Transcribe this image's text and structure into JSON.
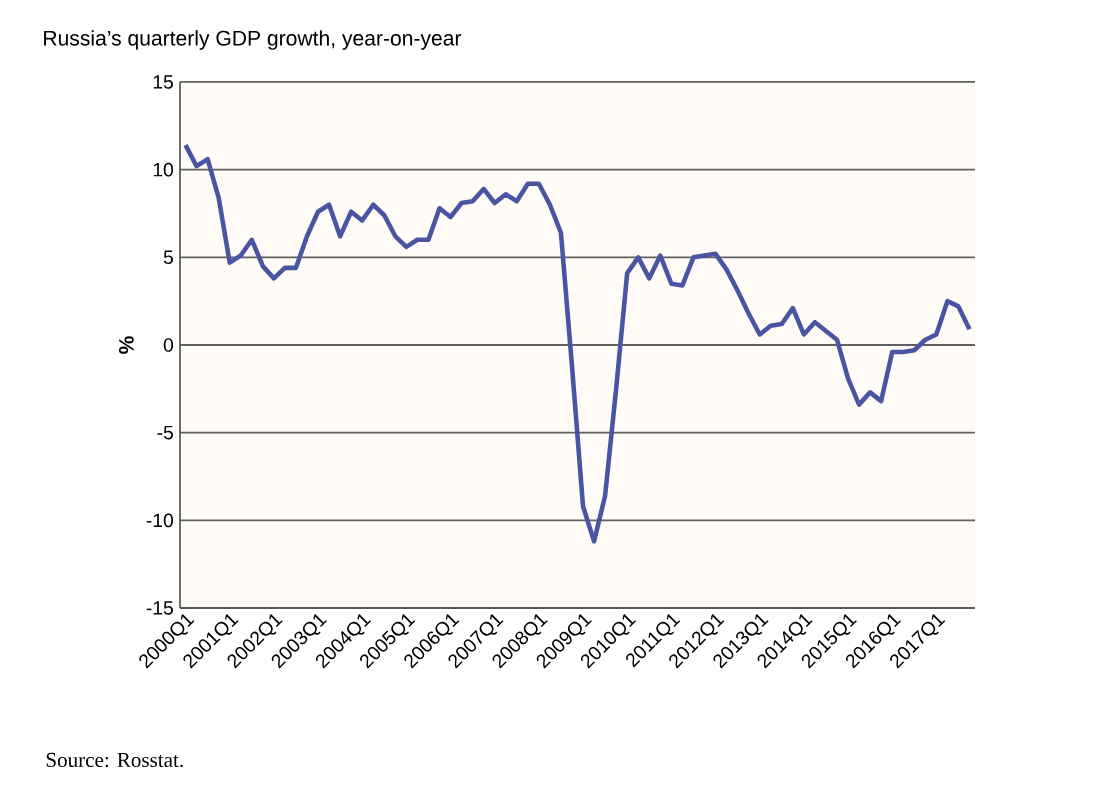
{
  "chart_data": {
    "type": "line",
    "title": "Russia’s quarterly GDP growth, year-on-year",
    "ylabel": "%",
    "annotations": [
      "Source: Rosstat."
    ],
    "categories": [
      "2000Q1",
      null,
      null,
      null,
      "2001Q1",
      null,
      null,
      null,
      "2002Q1",
      null,
      null,
      null,
      "2003Q1",
      null,
      null,
      null,
      "2004Q1",
      null,
      null,
      null,
      "2005Q1",
      null,
      null,
      null,
      "2006Q1",
      null,
      null,
      null,
      "2007Q1",
      null,
      null,
      null,
      "2008Q1",
      null,
      null,
      null,
      "2009Q1",
      null,
      null,
      null,
      "2010Q1",
      null,
      null,
      null,
      "2011Q1",
      null,
      null,
      null,
      "2012Q1",
      null,
      null,
      null,
      "2013Q1",
      null,
      null,
      null,
      "2014Q1",
      null,
      null,
      null,
      "2015Q1",
      null,
      null,
      null,
      "2016Q1",
      null,
      null,
      null,
      "2017Q1",
      null,
      null,
      null
    ],
    "series": [
      {
        "color": "#4a55a2",
        "values": [
          11.4,
          10.2,
          10.6,
          8.4,
          4.7,
          5.1,
          6.0,
          4.5,
          3.8,
          4.4,
          4.4,
          6.2,
          7.6,
          8.0,
          6.2,
          7.6,
          7.1,
          8.0,
          7.4,
          6.2,
          5.6,
          6.0,
          6.0,
          7.8,
          7.3,
          8.1,
          8.2,
          8.9,
          8.1,
          8.6,
          8.2,
          9.2,
          9.2,
          8.0,
          6.4,
          -1.2,
          -9.2,
          -11.2,
          -8.6,
          -2.5,
          4.1,
          5.0,
          3.8,
          5.1,
          3.5,
          3.4,
          5.0,
          5.1,
          5.2,
          4.3,
          3.1,
          1.8,
          0.6,
          1.1,
          1.2,
          2.1,
          0.6,
          1.3,
          0.8,
          0.3,
          -1.9,
          -3.4,
          -2.7,
          -3.2,
          -0.4,
          -0.4,
          -0.3,
          0.3,
          0.6,
          2.5,
          2.2,
          0.9
        ]
      }
    ],
    "ylim": [
      -15,
      15
    ],
    "yticks": [
      -15,
      -10,
      -5,
      0,
      5,
      10,
      15
    ],
    "grid": "y"
  }
}
